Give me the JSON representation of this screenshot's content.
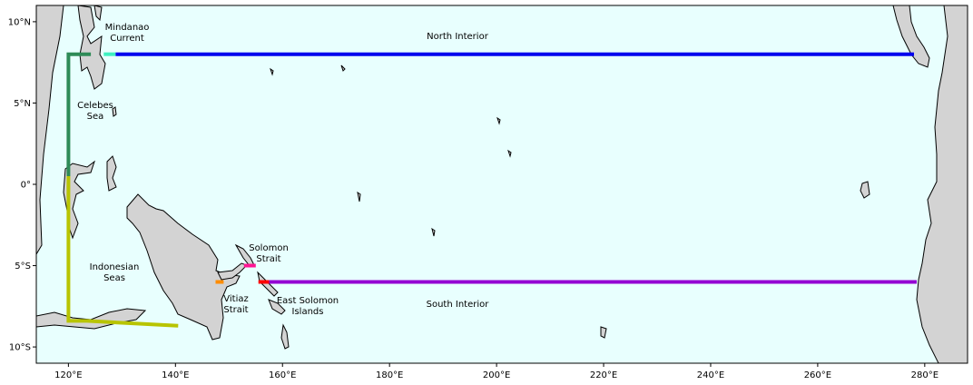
{
  "map": {
    "ocean_color": "#e8fffe",
    "land_color": "#d3d3d3",
    "lon_range": [
      114,
      288
    ],
    "lat_range": [
      -11,
      11
    ],
    "x_ticks": [
      {
        "lon": 120,
        "label": "120°E"
      },
      {
        "lon": 140,
        "label": "140°E"
      },
      {
        "lon": 160,
        "label": "160°E"
      },
      {
        "lon": 180,
        "label": "180°E"
      },
      {
        "lon": 200,
        "label": "200°E"
      },
      {
        "lon": 220,
        "label": "220°E"
      },
      {
        "lon": 240,
        "label": "240°E"
      },
      {
        "lon": 260,
        "label": "260°E"
      },
      {
        "lon": 280,
        "label": "280°E"
      }
    ],
    "y_ticks": [
      {
        "lat": 10,
        "label": "10°N"
      },
      {
        "lat": 5,
        "label": "5°N"
      },
      {
        "lat": 0,
        "label": "0°"
      },
      {
        "lat": -5,
        "label": "5°S"
      },
      {
        "lat": -10,
        "label": "10°S"
      }
    ],
    "sections": [
      {
        "name": "north-interior",
        "color": "#0000ee",
        "points": [
          [
            128.8,
            8
          ],
          [
            278,
            8
          ]
        ]
      },
      {
        "name": "mindanao-current",
        "color": "#3ff0c0",
        "points": [
          [
            126.6,
            8
          ],
          [
            128.8,
            8
          ]
        ]
      },
      {
        "name": "celebes-sea",
        "color": "#2e8b57",
        "points": [
          [
            124.2,
            8
          ],
          [
            120,
            8
          ],
          [
            120,
            0.5
          ]
        ]
      },
      {
        "name": "indonesian-seas",
        "color": "#b8c400",
        "points": [
          [
            120,
            0.5
          ],
          [
            120,
            -8.4
          ],
          [
            123.5,
            -8.4
          ],
          [
            140.5,
            -8.7
          ]
        ]
      },
      {
        "name": "vitiaz-strait",
        "color": "#ff8c00",
        "points": [
          [
            147.5,
            -6
          ],
          [
            149,
            -6
          ]
        ]
      },
      {
        "name": "solomon-strait",
        "color": "#ff1493",
        "points": [
          [
            152.8,
            -5
          ],
          [
            155,
            -5
          ]
        ]
      },
      {
        "name": "east-solomon-islands",
        "color": "#ff0000",
        "points": [
          [
            155.5,
            -6
          ],
          [
            157.5,
            -6
          ]
        ]
      },
      {
        "name": "south-interior",
        "color": "#9400d3",
        "points": [
          [
            157.5,
            -6
          ],
          [
            278.5,
            -6
          ]
        ]
      }
    ],
    "labels": [
      {
        "name": "mindanao-current",
        "lines": [
          "Mindanao",
          "Current"
        ]
      },
      {
        "name": "north-interior",
        "lines": [
          "North Interior"
        ]
      },
      {
        "name": "celebes-sea",
        "lines": [
          "Celebes",
          "Sea"
        ]
      },
      {
        "name": "solomon-strait",
        "lines": [
          "Solomon",
          "Strait"
        ]
      },
      {
        "name": "indonesian-seas",
        "lines": [
          "Indonesian",
          "Seas"
        ]
      },
      {
        "name": "vitiaz-strait",
        "lines": [
          "Vitiaz",
          "Strait"
        ]
      },
      {
        "name": "east-solomon-islands",
        "lines": [
          "East Solomon",
          "Islands"
        ]
      },
      {
        "name": "south-interior",
        "lines": [
          "South Interior"
        ]
      }
    ]
  }
}
